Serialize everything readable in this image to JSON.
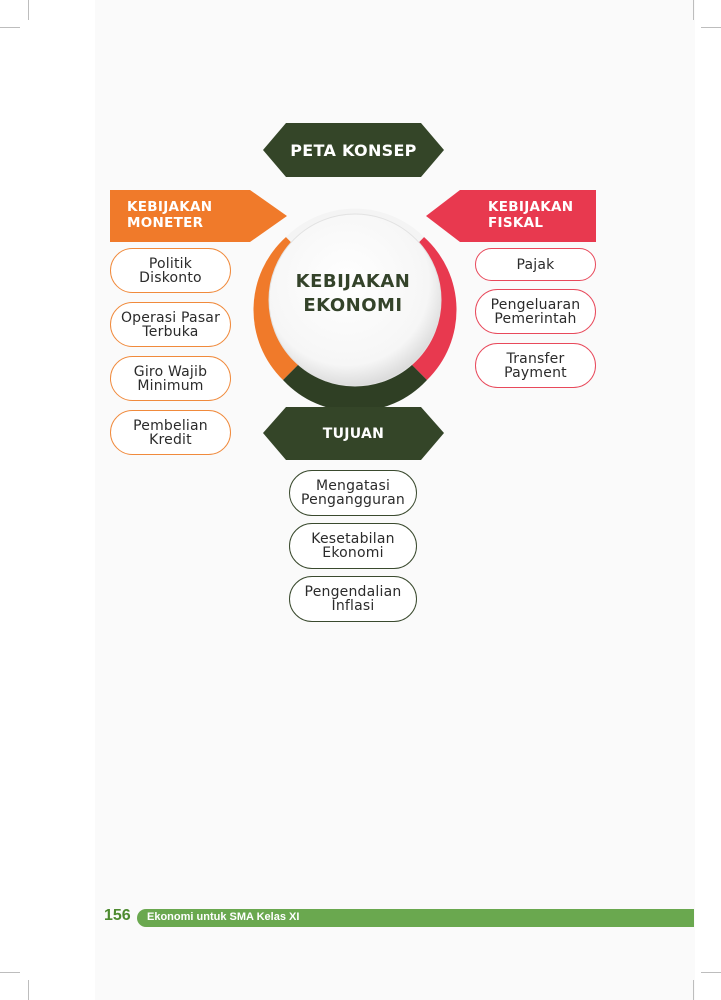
{
  "diagram": {
    "header": "PETA KONSEP",
    "center": "KEBIJAKAN\nEKONOMI",
    "monetary": {
      "label": "KEBIJAKAN\nMONETER",
      "items": [
        "Politik\nDiskonto",
        "Operasi Pasar\nTerbuka",
        "Giro Wajib\nMinimum",
        "Pembelian\nKredit"
      ],
      "color": "#f07a2a"
    },
    "fiscal": {
      "label": "KEBIJAKAN\nFISKAL",
      "items": [
        "Pajak",
        "Pengeluaran\nPemerintah",
        "Transfer\nPayment"
      ],
      "color": "#e8394f"
    },
    "goals": {
      "label": "TUJUAN",
      "items": [
        "Mengatasi\nPengangguran",
        "Kesetabilan\nEkonomi",
        "Pengendalian\nInflasi"
      ],
      "color": "#344528"
    }
  },
  "footer": {
    "page_number": "156",
    "book_title": "Ekonomi untuk SMA Kelas XI"
  }
}
